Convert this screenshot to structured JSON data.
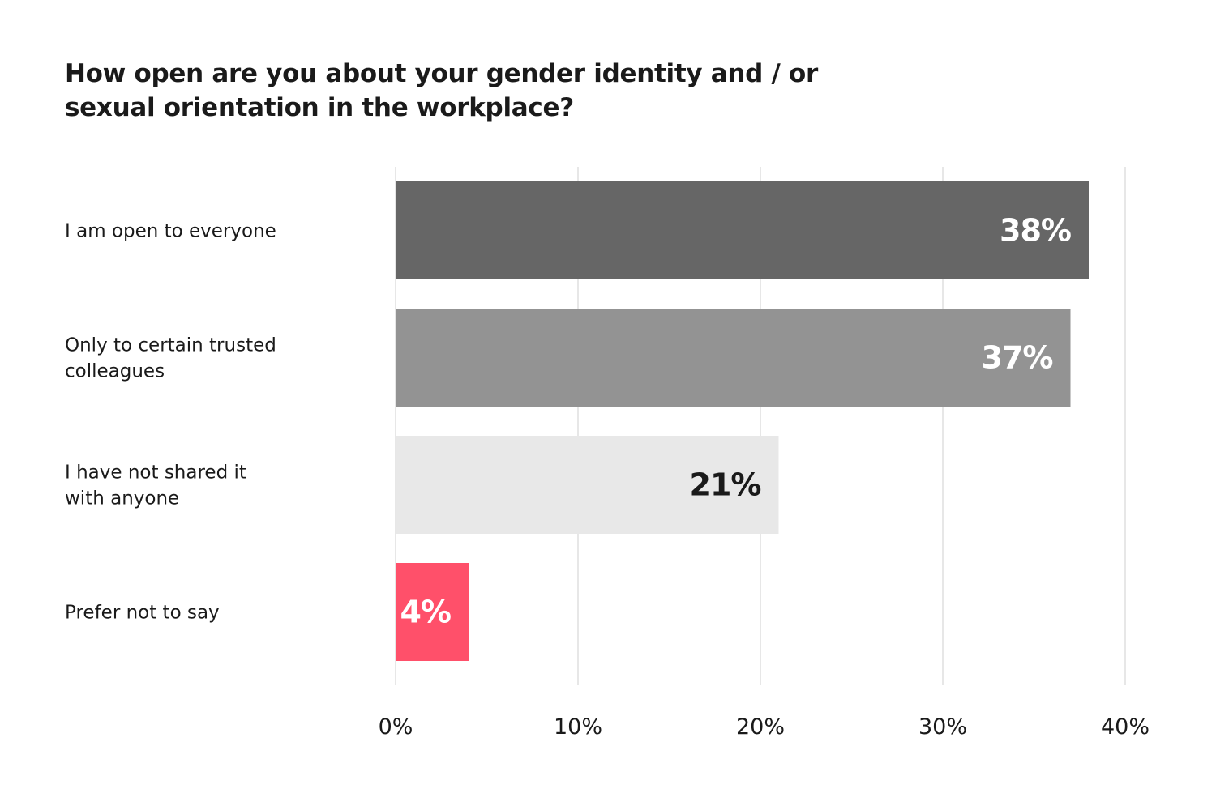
{
  "chart_data": {
    "type": "bar",
    "orientation": "horizontal",
    "title": "How open are you about your gender identity and / or sexual orientation in the workplace?",
    "xlabel": "",
    "ylabel": "",
    "categories": [
      [
        "I am open to everyone"
      ],
      [
        "Only to certain trusted",
        "colleagues"
      ],
      [
        "I have not shared it",
        "with anyone"
      ],
      [
        "Prefer not to say"
      ]
    ],
    "values": [
      38,
      37,
      21,
      4
    ],
    "value_labels": [
      "38%",
      "37%",
      "21%",
      "4%"
    ],
    "bar_colors": [
      "#666666",
      "#939393",
      "#e8e8e8",
      "#ff506a"
    ],
    "value_label_colors": [
      "#ffffff",
      "#ffffff",
      "#1a1a1a",
      "#ffffff"
    ],
    "xlim": [
      0,
      40
    ],
    "x_ticks": [
      0,
      10,
      20,
      30,
      40
    ],
    "x_tick_labels": [
      "0%",
      "10%",
      "20%",
      "30%",
      "40%"
    ],
    "grid": true,
    "legend": "none"
  }
}
